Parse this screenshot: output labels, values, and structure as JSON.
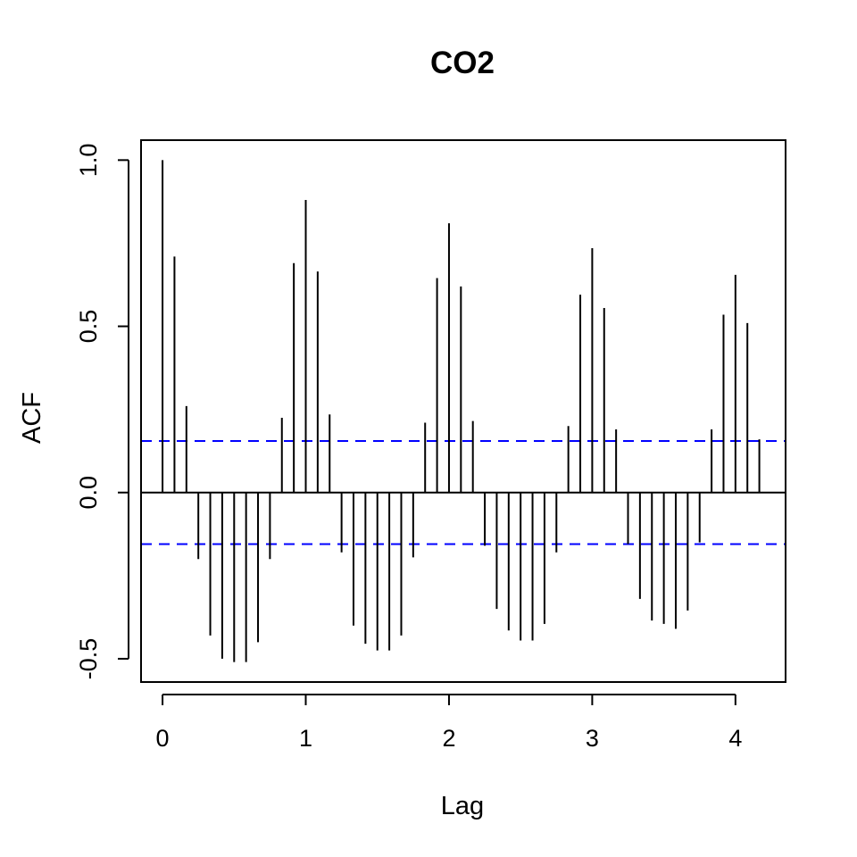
{
  "chart_data": {
    "type": "bar",
    "title": "CO2",
    "xlabel": "Lag",
    "ylabel": "ACF",
    "xlim": [
      -0.15,
      4.35
    ],
    "ylim": [
      -0.57,
      1.06
    ],
    "x_ticks": [
      0,
      1,
      2,
      3,
      4
    ],
    "x_tick_labels": [
      "0",
      "1",
      "2",
      "3",
      "4"
    ],
    "y_ticks": [
      -0.5,
      0,
      0.5,
      1
    ],
    "y_tick_labels": [
      "-0.5",
      "0.0",
      "0.5",
      "1.0"
    ],
    "confidence_bound": 0.155,
    "confidence_color": "#0000ff",
    "bar_color": "#000000",
    "grid": false,
    "x": [
      0,
      0.0833,
      0.1667,
      0.25,
      0.3333,
      0.4167,
      0.5,
      0.5833,
      0.6667,
      0.75,
      0.8333,
      0.9167,
      1,
      1.0833,
      1.1667,
      1.25,
      1.3333,
      1.4167,
      1.5,
      1.5833,
      1.6667,
      1.75,
      1.8333,
      1.9167,
      2,
      2.0833,
      2.1667,
      2.25,
      2.3333,
      2.4167,
      2.5,
      2.5833,
      2.6667,
      2.75,
      2.8333,
      2.9167,
      3,
      3.0833,
      3.1667,
      3.25,
      3.3333,
      3.4167,
      3.5,
      3.5833,
      3.6667,
      3.75,
      3.8333,
      3.9167,
      4,
      4.0833,
      4.1667
    ],
    "values": [
      1.0,
      0.71,
      0.26,
      -0.2,
      -0.43,
      -0.5,
      -0.51,
      -0.51,
      -0.45,
      -0.2,
      0.225,
      0.69,
      0.88,
      0.665,
      0.235,
      -0.18,
      -0.4,
      -0.455,
      -0.475,
      -0.475,
      -0.43,
      -0.195,
      0.21,
      0.645,
      0.81,
      0.62,
      0.215,
      -0.16,
      -0.35,
      -0.415,
      -0.445,
      -0.445,
      -0.395,
      -0.18,
      0.2,
      0.595,
      0.735,
      0.555,
      0.19,
      -0.155,
      -0.32,
      -0.385,
      -0.395,
      -0.41,
      -0.355,
      -0.15,
      0.19,
      0.535,
      0.655,
      0.51,
      0.16
    ]
  }
}
